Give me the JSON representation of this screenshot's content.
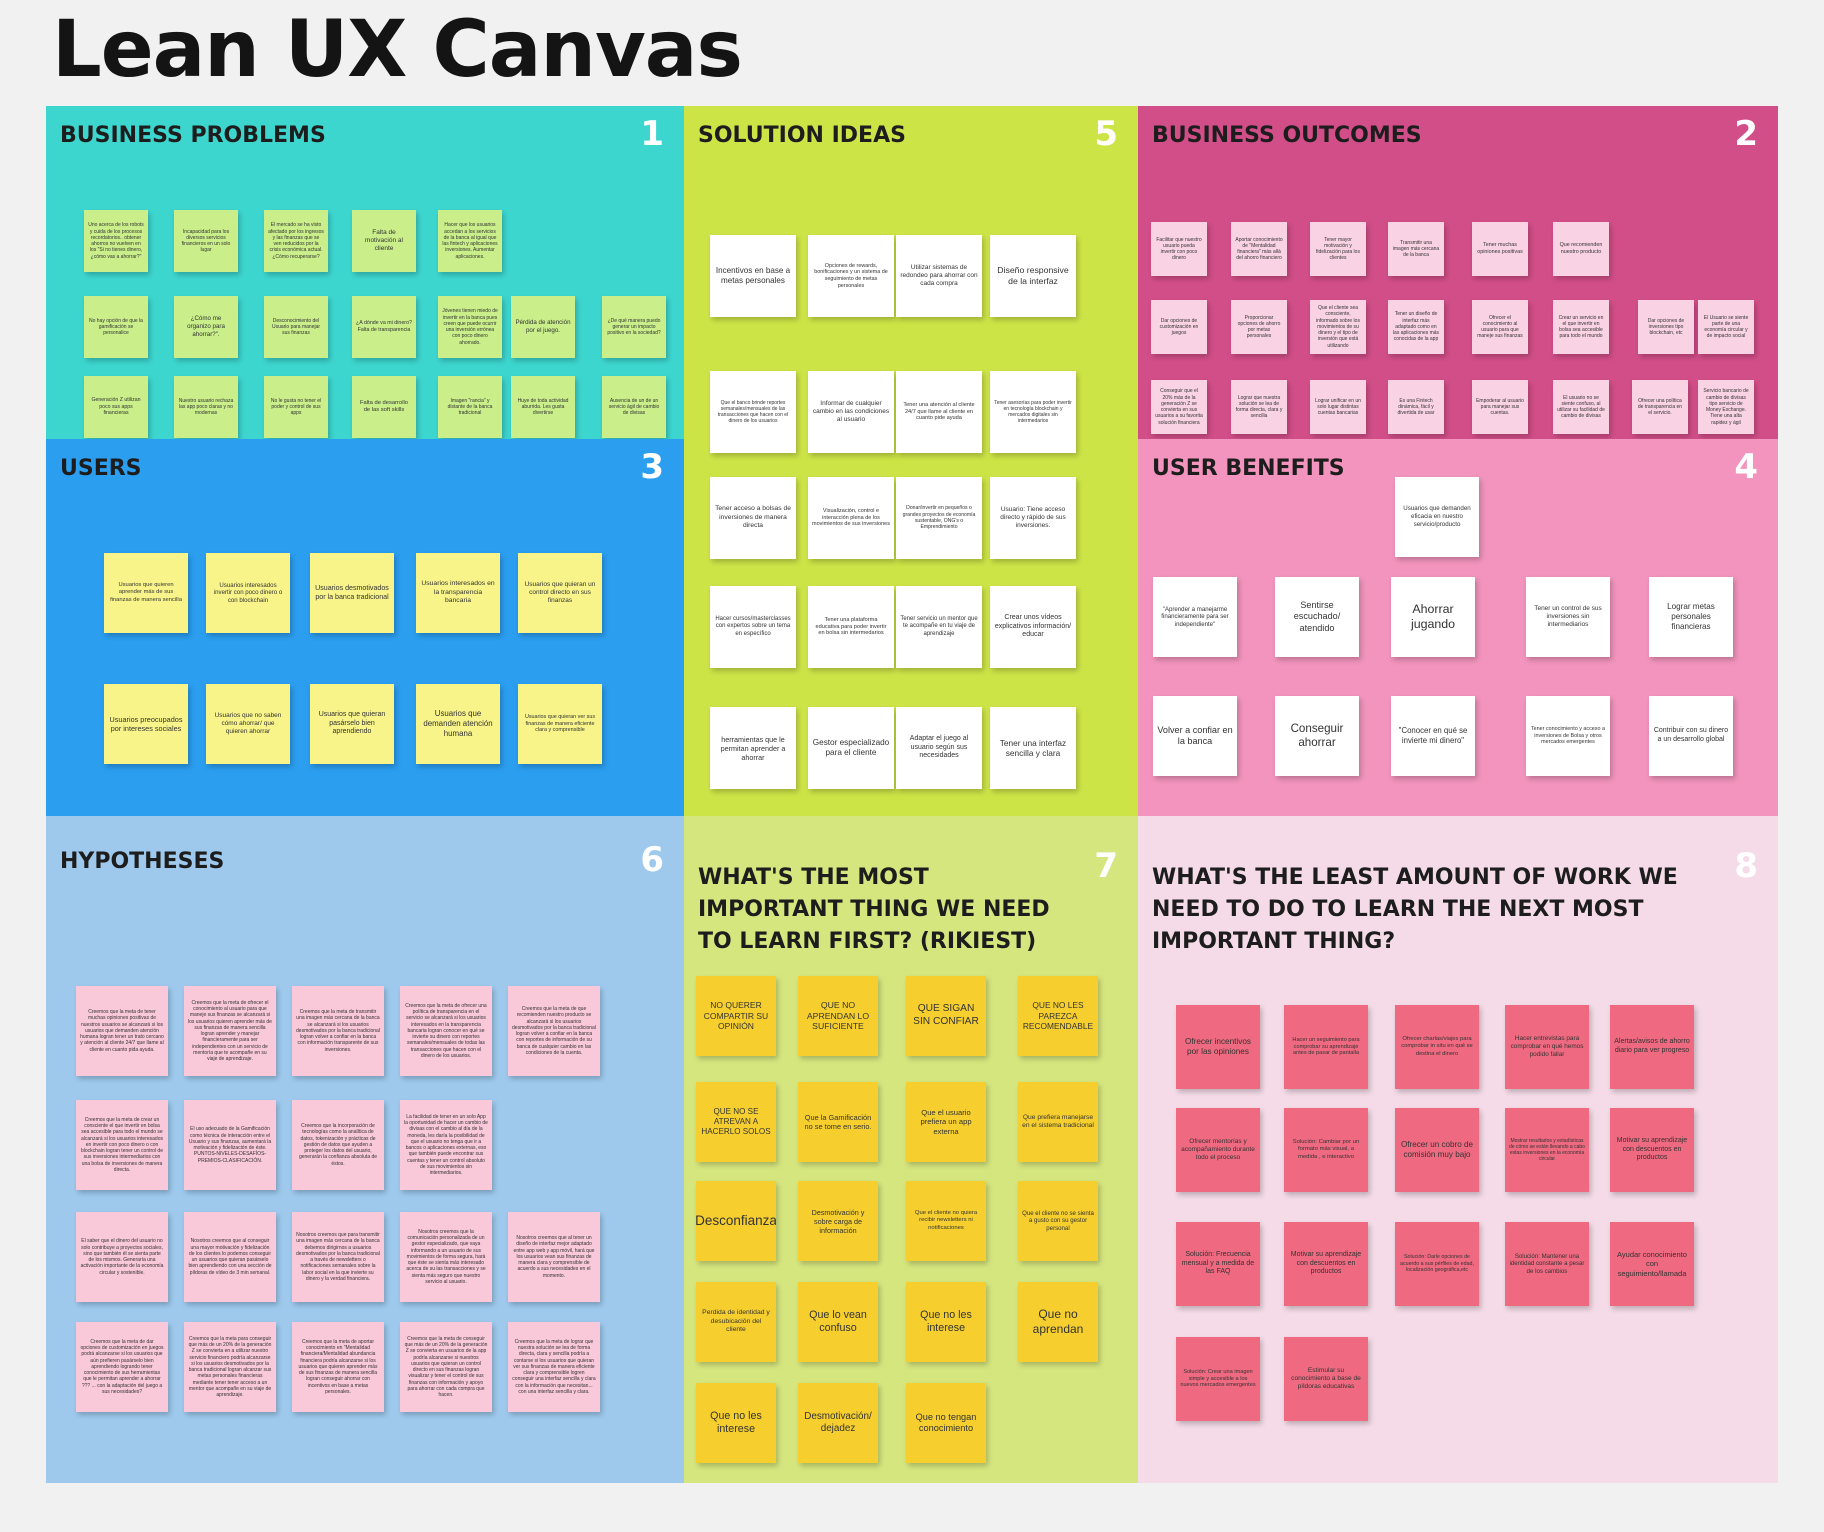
{
  "title": "Lean UX Canvas",
  "panels": [
    {
      "id": "business-problems",
      "title": "Business Problems",
      "number": "1",
      "bg": "#3dd6cf",
      "note": "#c9ee8a",
      "numColor": "#ffffff",
      "notes": [
        "Uno acerca de los robots y cuida de los procesos recordatorios.. obtener ahorros no vuelven en los \"Si no tienes dinero, ¿cómo vas a ahorrar?\"",
        "Incapacidad para los diversos servicios financieros en un solo lugar",
        "El mercado se ha visto afectado por los ingresos y las finanzas que se ven reducidos por la crisis económica actual. ¿Cómo recuperarse?",
        "Falta de motivación al cliente",
        "Hacer que los usuarios accedan a los servicios de la banca al igual que las fintech y aplicaciones inversiones. Aumentar aplicaciones.",
        "No hay opción de que la gamificación se personalice",
        "¿Cómo me organizo para ahorrar?\".",
        "Desconocimiento del Usuario para manejar sus finanzas",
        "¿A dónde va mi dinero? Falta de transparencia",
        "Jóvenes tienen miedo de invertir en la banca pues creen que puede ocurrir una inversión errónea con poco dinero ahorrado.",
        "Pérdida de atención por el juego.",
        "¿De qué manera puedo generar un impacto positivo en la sociedad?",
        "Generación Z utilizan poco sus apps financieras",
        "Nuestro usuario rechaza las app poco claras y no modernas",
        "No le gusta no tener el poder y control de sus apps",
        "Falta de desarrollo de las soft skills",
        "Imagen \"rancia\" y distante de la banca tradicional",
        "Huye de toda actividad aburrida. Les gusta divertirse",
        "Ausencia de un de un servicio ágil de cambio de divisas"
      ]
    },
    {
      "id": "solution-ideas",
      "title": "Solution Ideas",
      "number": "5",
      "bg": "#cde447",
      "note": "#ffffff",
      "numColor": "#ffffff",
      "notes": [
        "Incentivos en base a metas personales",
        "Opciones de rewards, bonificaciones y un sistema de seguimiento de metas personales",
        "Utilizar sistemas de redondeo para ahorrar con cada compra",
        "Diseño responsive de la interfaz",
        "Que el banco brinde reportes semanales/mensuales de las transacciones que hacen con el dinero de los usuarios",
        "Informar de cualquier cambio en las condiciones al usuario",
        "Tener una atención al cliente 24/7 que llame al cliente en cuanto pide ayuda",
        "Tener asesorías para poder invertir en tecnología blockchain y mercados digitales sin intermedarios",
        "Tener acceso a bolsas de inversiones de manera directa",
        "Visualización, control e interacción plena de los movimientos de sus inversiones",
        "Donar/invertir en pequeños o grandes proyectos de economía sustentable, ONG's o Emprendimiento",
        "Usuario: Tiene acceso directo y rápido de sus inversiones.",
        "Hacer cursos/masterclasses con expertos sobre un tema en específico",
        "Tener una plataforma educativa para poder invertir en bolsa sin intermedarios",
        "Tener servicio un mentor que te acompañe en tu viaje de aprendizaje",
        "Crear unos vídeos explicativos información/ educar",
        "herramientas que le permitan aprender a ahorrar",
        "Gestor especializado para el cliente",
        "Adaptar el juego al usuario según sus necesidades",
        "Tener una interfaz sencilla y clara"
      ]
    },
    {
      "id": "business-outcomes",
      "title": "Business Outcomes",
      "number": "2",
      "bg": "#d24e88",
      "note": "#f9d3e3",
      "numColor": "#ffffff",
      "notes": [
        "Facilitar que nuestro usuario pueda invertir con poco dinero",
        "Aportar conocimiento de \"Mentalidad financiera\" más allá del ahorro financiero",
        "Tener mayor motivación y fidelización para los clientes",
        "Transmitir una imagen más cercana de la banca",
        "Tener muchas opiniones positivas",
        "Que recomienden nuestro producto",
        "Dar opciones de customización en juegos",
        "Proporcionar opciones de ahorro por metas personales",
        "Que el cliente sea consciente, informado sobre los movimientos de su dinero y el tipo de inversión que está utilizando",
        "Tener un diseño de interfaz más adaptado como en las aplicaciones más conocidas de la app",
        "Ofrecer el conocimiento al usuario para que maneje sus finanzas",
        "Crear un servicio en el que invertir en bolsa sea accesible para todo el mundo",
        "Dar opciones de inversiones tipo blockchain, etc",
        "El Usuario se siente parte de una economía circular y de impacto social",
        "Conseguir que el 20% más de la generación Z se convierta en sus usuarios a su favorita solución financiera",
        "Lograr que nuestra solución se lea de forma directa, clara y sencilla",
        "Lograr unificar en un solo lugar distintas cuentas bancarias",
        "Es una Fintech dinámica, fácil y divertida de usar",
        "Empoderar al usuario para manejar sus cuentas.",
        "El usuario no se siente confuso, al utilizar su facilidad de cambio de divisas",
        "Ofrecer una política de transparencia en el servicio.",
        "Servicio bancario de cambio de divisas tipo servicio de Money Exchange. Tiene una alta rapidez y ágil"
      ]
    },
    {
      "id": "users",
      "title": "Users",
      "number": "3",
      "bg": "#2b9ef0",
      "note": "#f8f48a",
      "numColor": "#ffffff",
      "notes": [
        "Usuarios que quieren aprender más de sus finanzas de manera sencilla",
        "Usuarios interesados invertir con poco dinero o con blockchain",
        "Usuarios desmotivados por la banca tradicional",
        "Usuarios interesados en la transparencia bancaria",
        "Usuarios que quieran un control directo en sus finanzas",
        "Usuarios preocupados por intereses sociales",
        "Usuarios que no saben cómo ahorrar/ que quieren ahorrar",
        "Usuarios que quieran pasárselo bien aprendiendo",
        "Usuarios que demanden atención humana",
        "Usuarios que quieran ver sus finanzas de manera eficiente clara y comprensible"
      ]
    },
    {
      "id": "user-benefits",
      "title": "User Benefits",
      "number": "4",
      "bg": "#f294bd",
      "note": "#ffffff",
      "numColor": "#ffffff",
      "notes": [
        "Usuarios que demanden eficacia en nuestro servicio/producto",
        "\"Aprender a manejarme financieramente para ser independiente\"",
        "Sentirse escuchado/ atendido",
        "Ahorrar jugando",
        "Tener un control de sus inversiones sin intermediarios",
        "Lograr metas personales financieras",
        "Volver a confiar en la banca",
        "Conseguir ahorrar",
        "\"Conocer en qué se invierte mi dinero\"",
        "Tener conocimiento y acceso a inversiones de Bolsa y otros mercados emergentes",
        "Contribuir con su dinero a un desarrollo global"
      ]
    },
    {
      "id": "hypotheses",
      "title": "Hypotheses",
      "number": "6",
      "bg": "#9ec9ed",
      "note": "#f9c8d9",
      "numColor": "#ffffff",
      "notes": [
        "Creemos que la meta de tener muchas opiniones positivas de nuestros usuarios se alcanzará si los usuarios que demanden atención humana logran tener un trato cercano y atención al cliente 24/7 que llame al cliente en cuanto pida ayuda.",
        "Creemos que la meta de ofrecer el conocimiento al usuario para que maneje sus finanzas se alcanzará si los usuarios quieren aprender más de sus finanzas de manera sencilla logran aprender y manejar financieramente para ser independientes con un servicio de mentoría que te acompañe en su viaje de aprendizaje.",
        "Creemos que la meta de transmitir una imagen más cercana de la banca se alcanzará si los usuarios desmotivados por la banca tradicional logran volver a confiar en la banca con información transparente de sus inversiones.",
        "Creemos que la meta de ofrecer una política de transparencia en el servicio se alcanzará si los usuarios interesados en la transparencia bancaria logran conocer en qué se invierte su dinero con reportes semanales/mensuales de todas las transacciones que hacen con el dinero de los usuarios.",
        "Creemos que la meta de que recomienden nuestro producto se alcanzará si los usuarios desmotivados por la banca tradicional logran volver a confiar en la banca con reportes de información de su banca de cualquier cambio en las condiciones de la cuenta.",
        "Creemos que la meta de crear un consciente el que invertir en bolsa sea accesible para todo el mundo se alcanzará si los usuarios interesados en invertir con poco dinero o con blockchain logran tener un control de sus inversiones intermediarios con una bolsa de inversiones de manera directa.",
        "El uso adecuado de la Gamificación como técnica de interacción entre el Usuario y sus finanzas, aumentará la motivación y fidelización de éste. PUNTOS-NIVELES-DESAFÍOS-PREMIOS-CLASIFICACIÓN.",
        "Creemos que la incorporación de tecnologías como la analítica de datos, tokenización y prácticas de gestión de datos que ayuden a proteger los datos del usuario, generarán la confianza absoluta de éstos.",
        "La facilidad de tener en un solo App la oportunidad de hacer un cambio de divisas con el cambio al día de la moneda, les daría la posibilidad de que el usuario no tenga que ir a bancos o aplicaciones externas, eso que también puede encontrar sus cuentas y tener un control absoluto de sus movimientos sin intermediarios.",
        "El saber que el dinero del usuario no solo contribuye a proyectos sociales, sino que también él se sienta parte de los mismos. Generaría una activación importante de la economía circular y sostenible.",
        "Nosotros creemos que al conseguir una mayor motivación y fidelización de los clientes lo podemos conseguir un usuarios que quieran pasárselo bien aprendiendo con una sección de píldoras de vídeo de 3 min semanal.",
        "Nosotros creemos que para transmitir una imagen más cercana de la banca debemos dirigirnos a usuarios desmotivados por la banca tradicional a través de newsletters o notificaciones semanales sobre la labor social en la que invierte su dinero y la verdad financiera.",
        "Nosotros creemos que la comunicación personalizada de un gestor especializado, que vaya informando a un usuario de sus movimientos de forma segura, hará que éste se sienta más interesado acerca de su las transacciones y se sienta más seguro que nuestro servicio al usuario.",
        "Nosotros creemos que al tener un diseño de interfaz mejor adaptado entre app web y app móvil, hará que los usuarios vean sus finanzas de manera clara y comprensible de acuerdo a sus necesidades en el momento.",
        "Creemos que la meta de dar opciones de customización en juegos podrá alcanzarse si los usuarios que aún prefieren pasárselo bien aprendiendo logrando tener conocimiento de sus herramientas que le permitan aprender a ahorrar ??? ... con la adaptación del juego a sus necesidades?",
        "Creemos que la meta para conseguir que más de un 20% de la generación Z se convierta en a utilizar nuestro servicio financiero podría alcanzarse si los usuarios desmotivados por la banca tradicional logran alcanzar sus metas personales financieras mediante tener tener acceso a un mentor que acompañe en su viaje de aprendizaje.",
        "Creemos que la meta de aportar conocimiento en \"Mentalidad financiera/Mentalidad abundancia financiera podría alcanzarse si los usuarios que quieren aprender más de sus finanzas de manera sencilla logran conseguir ahorrar con incentivos en base a metas personales.",
        "Creemos que la meta de conseguir que más de un 20% de la generación Z se convierta en usuarios de la app podría alcanzarse si nuestros usuarios que quieran un control directo en sus finanzas logran visualizar y tener el control de sus finanzas con información y apoyo para ahorrar con cada compra que hacen.",
        "Creemos que la meta de lograr que nuestra solución se lea de forma directa, clara y sencilla podría a contarse si los usuarios que quieran ver sus finanzas de manera eficiente clara y comprensible logren conseguir una interfaz sencilla y clara con la información que necesitan... con una interfaz sencilla y clara."
      ]
    },
    {
      "id": "riskiest",
      "title": "What's the most\nimportant thing we need\nto learn first? (rikiest)",
      "number": "7",
      "bg": "#d6e67e",
      "note": "#f6cf2f",
      "numColor": "#ffffff",
      "notes": [
        "NO QUERER COMPARTIR SU OPINIÓN",
        "QUE NO APRENDAN LO SUFICIENTE",
        "QUE SIGAN SIN CONFIAR",
        "QUE NO LES PAREZCA RECOMENDABLE",
        "QUE NO SE ATREVAN A HACERLO SOLOS",
        "Que la Gamificación no se tome en serio.",
        "Que el usuario prefiera un app externa",
        "Que prefiera manejarse en el sistema tradicional",
        "Desconfianza",
        "Desmotivación y sobre carga de información",
        "Que el cliente no quiera recibir newsletters ni notificaciones",
        "Que el cliente no se sienta a gusto con su gestor personal",
        "Perdida de identidad y desubicación del cliente",
        "Que lo vean confuso",
        "Que no les interese",
        "Que no aprendan",
        "Que no les interese",
        "Desmotivación/ dejadez",
        "Que no tengan conocimiento"
      ]
    },
    {
      "id": "least-work",
      "title": "What's the least amount of work we\nneed to do to learn the next most\nimportant thing?",
      "number": "8",
      "bg": "#f4dbe7",
      "note": "#ef6a80",
      "numColor": "#ffffff",
      "notes": [
        "Ofrecer incentivos por las opiniones",
        "Hacer un seguimiento para comprobar su aprendizaje antes de pasar de pantalla",
        "Ofrecer charlas/viajes para comprobar in situ en qué se destina el dinero",
        "Hacer entrevistas para comprobar en qué hemos podido fallar",
        "Alertas/avisos de ahorro diario para ver progreso",
        "Ofrecer mentorías y acompañamiento durante todo el proceso",
        "Solución: Cambiar por un formato más visual, a medida , e interactivo",
        "Ofrecer un cobro de comisión muy bajo",
        "Mostrar resultados y estadísticas de cómo se están llevando a cabo estas inversiones en la economía circular",
        "Motivar su aprendizaje con descuentos en productos",
        "Solución: Frecuencia mensual y a medida de las FAQ",
        "Motivar su aprendizaje con descuentos en productos",
        "Solución: Darle opciones de acuerdo a sus pérfiles de edad, localización geográfica,etc",
        "Solución: Mantener una identidad constante a pesar de los cambios",
        "Ayudar conocimiento con seguimiento/llamada",
        "Solución: Crear una imagen simple y accesible a los nuevos mercados emergentes",
        "Estimular su conocimiento a base de píldoras educativas"
      ]
    }
  ]
}
